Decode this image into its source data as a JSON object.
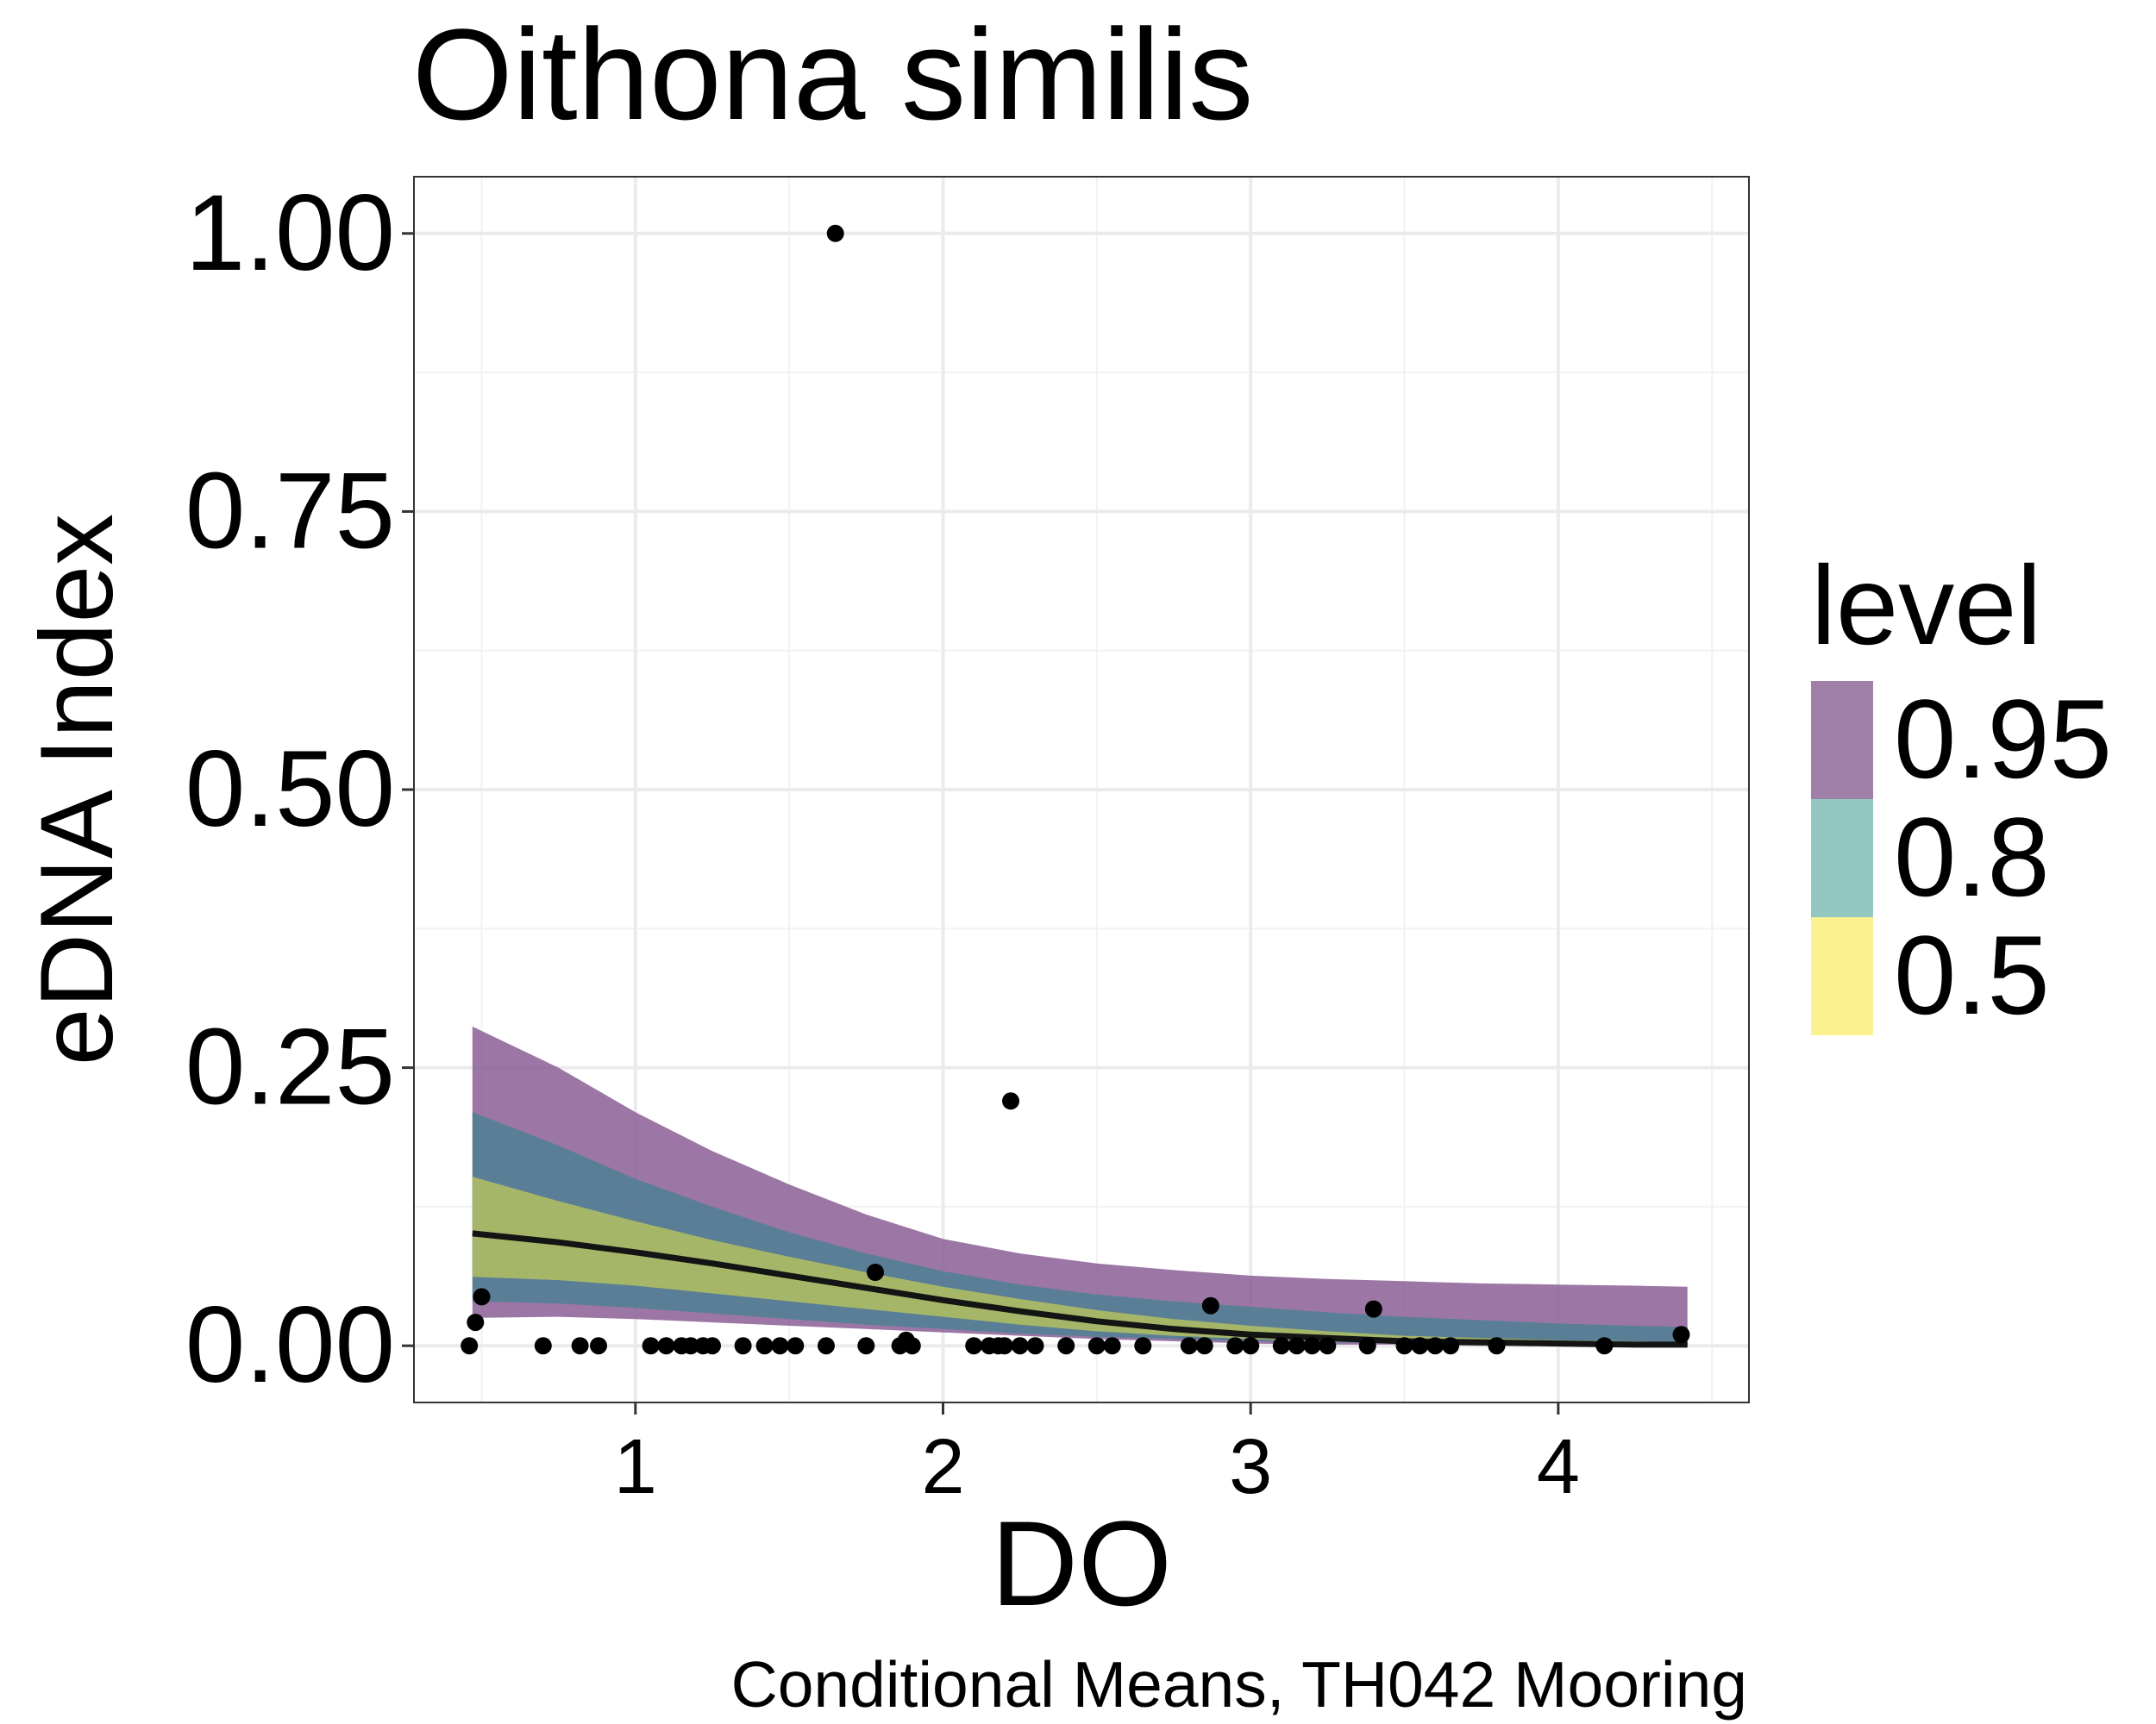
{
  "chart_data": {
    "type": "line",
    "title": "Oithona similis",
    "xlabel": "DO",
    "ylabel": "eDNA Index",
    "caption": "Conditional Means, TH042 Mooring",
    "xlim": [
      0.28,
      4.62
    ],
    "ylim": [
      -0.051,
      1.051
    ],
    "x_ticks": [
      1,
      2,
      3,
      4
    ],
    "x_tick_labels": [
      "1",
      "2",
      "3",
      "4"
    ],
    "y_ticks": [
      0,
      0.25,
      0.5,
      0.75,
      1.0
    ],
    "y_tick_labels": [
      "0.00",
      "0.25",
      "0.50",
      "0.75",
      "1.00"
    ],
    "grid": true,
    "legend": {
      "title": "level",
      "position": "right",
      "entries": [
        {
          "label": "0.95",
          "color": "#a07fa8"
        },
        {
          "label": "0.8",
          "color": "#93c7c2"
        },
        {
          "label": "0.5",
          "color": "#fbf18f"
        }
      ]
    },
    "bands": [
      {
        "level": "0.95",
        "color": "#8b5f97",
        "x": [
          0.47,
          0.75,
          1.0,
          1.25,
          1.5,
          1.75,
          2.0,
          2.25,
          2.5,
          2.75,
          3.0,
          3.25,
          3.5,
          3.75,
          4.0,
          4.25,
          4.42
        ],
        "upper": [
          0.287,
          0.25,
          0.21,
          0.175,
          0.145,
          0.118,
          0.096,
          0.083,
          0.074,
          0.068,
          0.063,
          0.06,
          0.058,
          0.056,
          0.055,
          0.054,
          0.053
        ],
        "lower": [
          0.025,
          0.026,
          0.024,
          0.021,
          0.018,
          0.015,
          0.012,
          0.009,
          0.006,
          0.004,
          0.002,
          0.001,
          0.001,
          0.0,
          0.0,
          0.0,
          0.0
        ]
      },
      {
        "level": "0.8",
        "color": "#4f7f93",
        "x": [
          0.47,
          0.75,
          1.0,
          1.25,
          1.5,
          1.75,
          2.0,
          2.25,
          2.5,
          2.75,
          3.0,
          3.25,
          3.5,
          3.75,
          4.0,
          4.25,
          4.42
        ],
        "upper": [
          0.21,
          0.18,
          0.15,
          0.125,
          0.102,
          0.083,
          0.067,
          0.055,
          0.046,
          0.04,
          0.035,
          0.03,
          0.026,
          0.023,
          0.02,
          0.018,
          0.017
        ],
        "lower": [
          0.04,
          0.038,
          0.034,
          0.029,
          0.024,
          0.019,
          0.015,
          0.011,
          0.008,
          0.006,
          0.004,
          0.003,
          0.002,
          0.001,
          0.001,
          0.001,
          0.0
        ]
      },
      {
        "level": "0.5",
        "color": "#b3bf60",
        "x": [
          0.47,
          0.75,
          1.0,
          1.25,
          1.5,
          1.75,
          2.0,
          2.25,
          2.5,
          2.75,
          3.0,
          3.25,
          3.5,
          3.75,
          4.0,
          4.25,
          4.42
        ],
        "upper": [
          0.152,
          0.13,
          0.112,
          0.095,
          0.08,
          0.066,
          0.053,
          0.042,
          0.032,
          0.024,
          0.018,
          0.013,
          0.009,
          0.007,
          0.005,
          0.004,
          0.003
        ],
        "lower": [
          0.062,
          0.059,
          0.054,
          0.047,
          0.04,
          0.033,
          0.026,
          0.019,
          0.013,
          0.009,
          0.006,
          0.004,
          0.002,
          0.001,
          0.001,
          0.0,
          0.0
        ]
      }
    ],
    "mean_line": {
      "color": "#141414",
      "x": [
        0.47,
        0.75,
        1.0,
        1.25,
        1.5,
        1.75,
        2.0,
        2.25,
        2.5,
        2.75,
        3.0,
        3.25,
        3.5,
        3.75,
        4.0,
        4.25,
        4.42
      ],
      "y": [
        0.101,
        0.093,
        0.084,
        0.074,
        0.063,
        0.052,
        0.041,
        0.031,
        0.022,
        0.015,
        0.01,
        0.007,
        0.004,
        0.003,
        0.002,
        0.001,
        0.001
      ]
    },
    "points": {
      "color": "#000000",
      "x": [
        0.46,
        0.48,
        0.5,
        0.7,
        0.82,
        0.88,
        1.05,
        1.1,
        1.15,
        1.18,
        1.22,
        1.25,
        1.35,
        1.42,
        1.47,
        1.52,
        1.62,
        1.75,
        1.86,
        1.88,
        1.9,
        2.1,
        2.15,
        2.18,
        2.2,
        2.25,
        2.3,
        2.4,
        2.5,
        2.55,
        2.65,
        2.8,
        2.85,
        2.95,
        3.0,
        3.1,
        3.15,
        3.2,
        3.25,
        3.38,
        3.5,
        3.55,
        3.6,
        3.65,
        3.8,
        4.15,
        4.4,
        1.65,
        2.22,
        2.87,
        3.4,
        1.78
      ],
      "y": [
        0,
        0.021,
        0.044,
        0,
        0,
        0,
        0,
        0,
        0,
        0,
        0,
        0,
        0,
        0,
        0,
        0,
        0,
        0,
        0,
        0.005,
        0,
        0,
        0,
        0,
        0,
        0,
        0,
        0,
        0,
        0,
        0,
        0,
        0,
        0,
        0,
        0,
        0,
        0,
        0,
        0,
        0,
        0,
        0,
        0,
        0,
        0,
        0.01,
        1.0,
        0.22,
        0.036,
        0.033,
        0.066
      ]
    }
  }
}
